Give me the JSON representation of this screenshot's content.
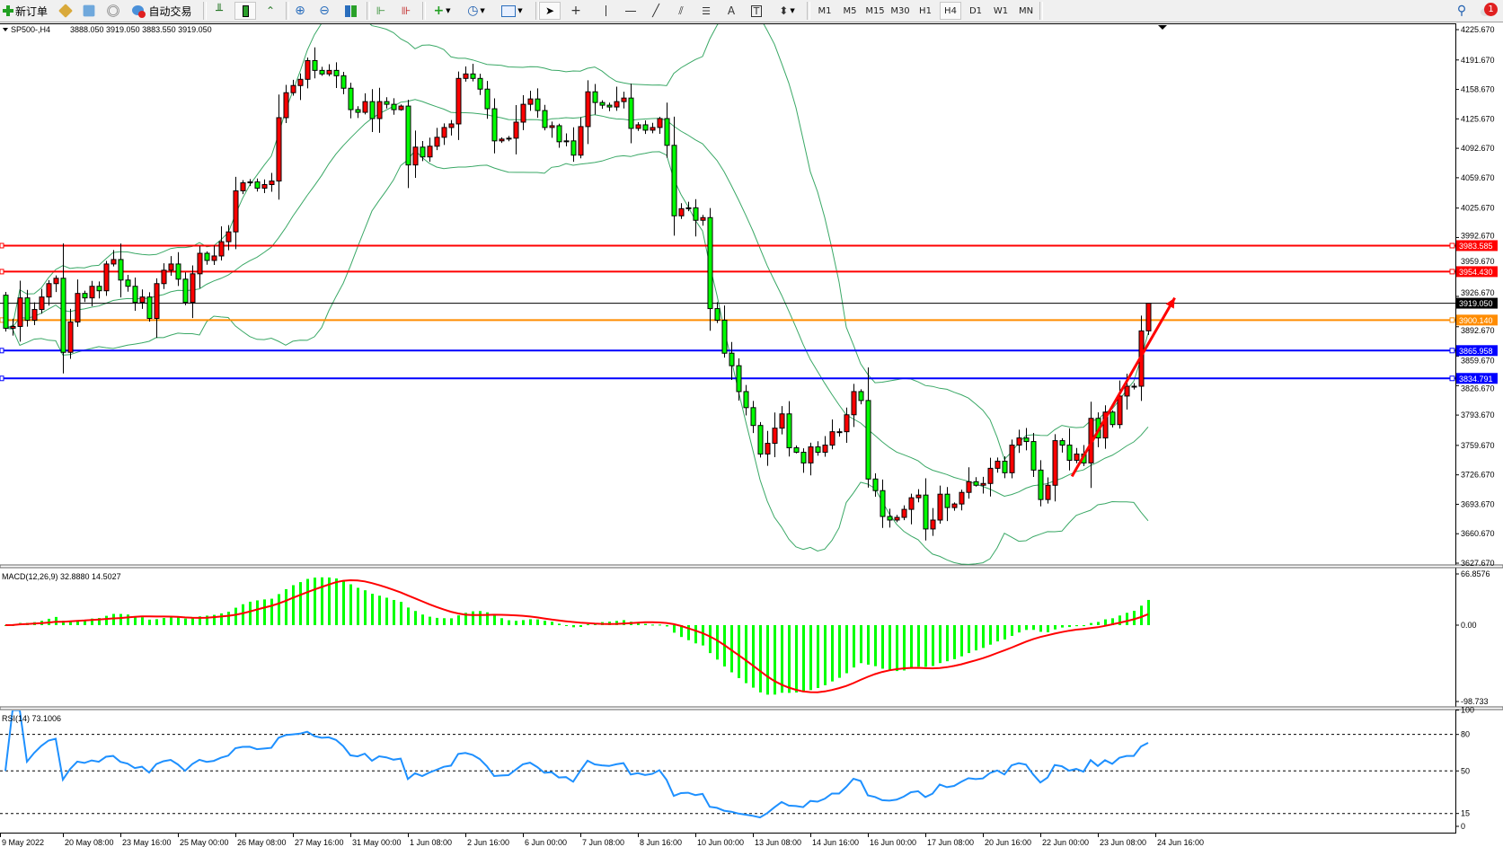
{
  "toolbar": {
    "new_order": "新订单",
    "auto_trading": "自动交易",
    "timeframes": [
      "M1",
      "M5",
      "M15",
      "M30",
      "H1",
      "H4",
      "D1",
      "W1",
      "MN"
    ],
    "active_timeframe": "H4",
    "notification_count": "1",
    "icons": [
      "new-order-icon",
      "expert-icon",
      "market-watch-icon",
      "signals-icon",
      "auto-trading-icon",
      "bar-chart-icon",
      "candlestick-icon",
      "line-chart-icon",
      "zoom-in-icon",
      "zoom-out-icon",
      "tile-windows-icon",
      "auto-scroll-icon",
      "chart-shift-icon",
      "indicators-icon",
      "periods-icon",
      "templates-icon",
      "cursor-icon",
      "crosshair-icon",
      "vertical-line-icon",
      "horizontal-line-icon",
      "trendline-icon",
      "equidistant-channel-icon",
      "fibonacci-icon",
      "text-icon",
      "text-label-icon",
      "arrows-icon",
      "search-icon",
      "notification-icon"
    ]
  },
  "chart_info": {
    "symbol_tf": "SP500-,H4",
    "ohlc": "3888.050 3919.050 3883.550 3919.050"
  },
  "chart_data": {
    "type": "candlestick",
    "symbol": "SP500-",
    "timeframe": "H4",
    "colors": {
      "bull": "#ff0000",
      "bear": "#00ff00",
      "bands": "#3aa866",
      "macd_hist": "#00ff00",
      "macd_signal": "#ff0000",
      "rsi": "#1e90ff"
    },
    "first_open": 3928,
    "closes": [
      3891,
      3893,
      3925,
      3900,
      3912,
      3926,
      3941,
      3947,
      3864,
      3898,
      3930,
      3925,
      3938,
      3933,
      3963,
      3968,
      3945,
      3938,
      3920,
      3926,
      3902,
      3941,
      3956,
      3963,
      3946,
      3920,
      3952,
      3975,
      3967,
      3972,
      3988,
      3999,
      4045,
      4054,
      4055,
      4048,
      4052,
      4056,
      4127,
      4155,
      4163,
      4170,
      4191,
      4180,
      4176,
      4180,
      4174,
      4160,
      4136,
      4133,
      4145,
      4126,
      4145,
      4142,
      4136,
      4140,
      4074,
      4094,
      4083,
      4095,
      4105,
      4116,
      4120,
      4171,
      4176,
      4171,
      4159,
      4137,
      4101,
      4103,
      4104,
      4122,
      4142,
      4148,
      4135,
      4116,
      4118,
      4100,
      4101,
      4085,
      4117,
      4156,
      4144,
      4141,
      4139,
      4145,
      4149,
      4115,
      4119,
      4113,
      4116,
      4126,
      4096,
      4017,
      4025,
      4026,
      4012,
      4015,
      3913,
      3900,
      3863,
      3849,
      3820,
      3802,
      3782,
      3750,
      3762,
      3779,
      3795,
      3757,
      3752,
      3740,
      3758,
      3752,
      3760,
      3775,
      3775,
      3794,
      3820,
      3810,
      3722,
      3709,
      3680,
      3676,
      3679,
      3688,
      3701,
      3704,
      3666,
      3676,
      3705,
      3690,
      3694,
      3707,
      3719,
      3715,
      3717,
      3734,
      3742,
      3729,
      3760,
      3768,
      3764,
      3732,
      3699,
      3715,
      3765,
      3760,
      3743,
      3750,
      3740,
      3790,
      3768,
      3797,
      3783,
      3815,
      3826,
      3826,
      3888
    ],
    "last_bar": {
      "open": 3888.05,
      "high": 3919.05,
      "low": 3883.55,
      "close": 3919.05
    },
    "price_axis": [
      "4225.670",
      "4191.670",
      "4158.670",
      "4125.670",
      "4092.670",
      "4059.670",
      "4025.670",
      "3992.670",
      "3959.670",
      "3926.670",
      "3892.670",
      "3859.670",
      "3826.670",
      "3793.670",
      "3759.670",
      "3726.670",
      "3693.670",
      "3660.670",
      "3627.670"
    ],
    "price_range": [
      3627.67,
      4225.67
    ],
    "time_axis": [
      "9 May 2022",
      "20 May 08:00",
      "23 May 16:00",
      "25 May 00:00",
      "26 May 08:00",
      "27 May 16:00",
      "31 May 00:00",
      "1 Jun 08:00",
      "2 Jun 16:00",
      "6 Jun 00:00",
      "7 Jun 08:00",
      "8 Jun 16:00",
      "10 Jun 00:00",
      "13 Jun 08:00",
      "14 Jun 16:00",
      "16 Jun 00:00",
      "17 Jun 08:00",
      "20 Jun 16:00",
      "22 Jun 00:00",
      "23 Jun 08:00",
      "24 Jun 16:00"
    ],
    "horizontal_lines": [
      {
        "price": 3983.585,
        "label": "3983.585",
        "color": "#ff0000"
      },
      {
        "price": 3954.43,
        "label": "3954.430",
        "color": "#ff0000"
      },
      {
        "price": 3919.05,
        "label": "3919.050",
        "color": "#000000"
      },
      {
        "price": 3900.14,
        "label": "3900.140",
        "color": "#ff8c00"
      },
      {
        "price": 3865.958,
        "label": "3865.958",
        "color": "#0000ff"
      },
      {
        "price": 3834.791,
        "label": "3834.791",
        "color": "#0000ff"
      }
    ],
    "trend_arrow": {
      "from": {
        "bar": 148.4,
        "price": 3725
      },
      "to": {
        "bar": 162.7,
        "price": 3925
      },
      "color": "#ff0000"
    },
    "bollinger": {
      "period": 20,
      "deviation": 2
    },
    "macd": {
      "label": "MACD(12,26,9) 32.8880 14.5027",
      "fast": 12,
      "slow": 26,
      "signal": 9,
      "axis": [
        "66.8576",
        "0.00",
        "-98.733"
      ],
      "range": [
        -98.733,
        66.8576
      ]
    },
    "rsi": {
      "label": "RSI(14) 73.1006",
      "period": 14,
      "axis": [
        "100",
        "80",
        "50",
        "15",
        "0"
      ],
      "levels": [
        80,
        50,
        15
      ]
    }
  }
}
